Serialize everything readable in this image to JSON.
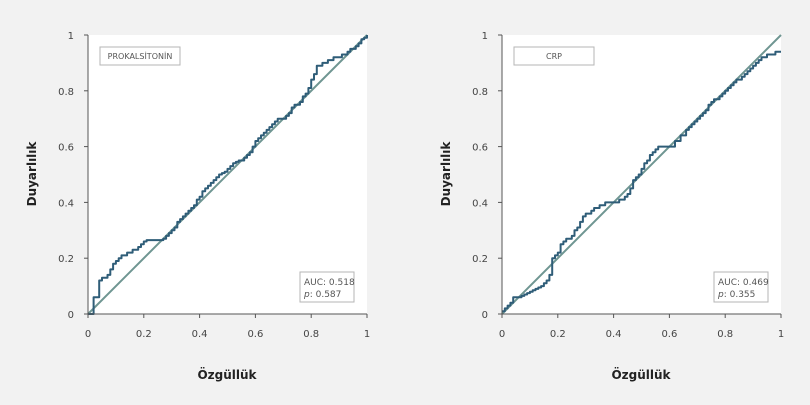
{
  "colors": {
    "background": "#f2f2f2",
    "plot_background": "#ffffff",
    "roc_line": "#2f5d78",
    "reference_line": "#6f9692",
    "axis": "#555555"
  },
  "chart_data": [
    {
      "type": "line",
      "panel": "left",
      "title": "PROKALSİTONİN",
      "xlabel": "Özgüllük",
      "ylabel": "Duyarlılık",
      "xlim": [
        0,
        1
      ],
      "ylim": [
        0,
        1
      ],
      "x_ticks": [
        "0",
        "0.2",
        "0.4",
        "0.6",
        "0.8",
        "1"
      ],
      "y_ticks": [
        "0",
        "0.2",
        "0.4",
        "0.6",
        "0.8",
        "1"
      ],
      "grid": false,
      "stats": {
        "auc": "AUC: 0.518",
        "p_label": "p",
        "p_value": ": 0.587"
      },
      "series": [
        {
          "x": [
            0,
            0.02,
            0.04,
            0.05,
            0.06,
            0.07,
            0.08,
            0.09,
            0.1,
            0.11,
            0.12,
            0.14,
            0.16,
            0.18,
            0.19,
            0.2,
            0.21,
            0.26,
            0.27,
            0.28,
            0.29,
            0.3,
            0.31,
            0.32,
            0.33,
            0.34,
            0.35,
            0.36,
            0.37,
            0.38,
            0.39,
            0.4,
            0.41,
            0.42,
            0.43,
            0.44,
            0.45,
            0.46,
            0.47,
            0.48,
            0.49,
            0.5,
            0.51,
            0.52,
            0.53,
            0.54,
            0.55,
            0.56,
            0.57,
            0.58,
            0.59,
            0.6,
            0.61,
            0.62,
            0.63,
            0.64,
            0.65,
            0.66,
            0.67,
            0.68,
            0.69,
            0.7,
            0.71,
            0.72,
            0.73,
            0.74,
            0.75,
            0.76,
            0.77,
            0.78,
            0.79,
            0.8,
            0.81,
            0.82,
            0.83,
            0.84,
            0.85,
            0.86,
            0.87,
            0.88,
            0.89,
            0.9,
            0.91,
            0.92,
            0.93,
            0.94,
            0.95,
            0.96,
            0.97,
            0.98,
            0.99,
            1
          ],
          "y": [
            0,
            0.06,
            0.12,
            0.13,
            0.13,
            0.14,
            0.16,
            0.18,
            0.19,
            0.2,
            0.21,
            0.22,
            0.23,
            0.24,
            0.25,
            0.26,
            0.265,
            0.265,
            0.27,
            0.28,
            0.29,
            0.3,
            0.31,
            0.33,
            0.34,
            0.35,
            0.36,
            0.37,
            0.38,
            0.39,
            0.41,
            0.42,
            0.44,
            0.45,
            0.46,
            0.47,
            0.48,
            0.49,
            0.5,
            0.505,
            0.51,
            0.52,
            0.53,
            0.54,
            0.545,
            0.55,
            0.55,
            0.56,
            0.57,
            0.58,
            0.6,
            0.62,
            0.63,
            0.64,
            0.65,
            0.66,
            0.67,
            0.68,
            0.69,
            0.7,
            0.7,
            0.7,
            0.71,
            0.72,
            0.74,
            0.75,
            0.75,
            0.76,
            0.78,
            0.79,
            0.81,
            0.84,
            0.86,
            0.89,
            0.89,
            0.9,
            0.9,
            0.91,
            0.91,
            0.92,
            0.92,
            0.92,
            0.93,
            0.93,
            0.94,
            0.95,
            0.95,
            0.96,
            0.97,
            0.985,
            0.99,
            1
          ]
        }
      ]
    },
    {
      "type": "line",
      "panel": "right",
      "title": "CRP",
      "xlabel": "Özgüllük",
      "ylabel": "Duyarlılık",
      "xlim": [
        0,
        1
      ],
      "ylim": [
        0,
        1
      ],
      "x_ticks": [
        "0",
        "0.2",
        "0.4",
        "0.6",
        "0.8",
        "1"
      ],
      "y_ticks": [
        "0",
        "0.2",
        "0.4",
        "0.6",
        "0.8",
        "1"
      ],
      "grid": false,
      "stats": {
        "auc": "AUC: 0.469",
        "p_label": "p",
        "p_value": ": 0.355"
      },
      "series": [
        {
          "x": [
            0,
            0.01,
            0.02,
            0.03,
            0.04,
            0.05,
            0.06,
            0.07,
            0.08,
            0.09,
            0.1,
            0.11,
            0.12,
            0.13,
            0.14,
            0.15,
            0.16,
            0.17,
            0.18,
            0.19,
            0.2,
            0.21,
            0.22,
            0.23,
            0.24,
            0.25,
            0.26,
            0.27,
            0.28,
            0.29,
            0.3,
            0.31,
            0.32,
            0.33,
            0.34,
            0.35,
            0.36,
            0.37,
            0.38,
            0.39,
            0.4,
            0.41,
            0.42,
            0.43,
            0.44,
            0.45,
            0.46,
            0.47,
            0.48,
            0.49,
            0.5,
            0.51,
            0.52,
            0.53,
            0.54,
            0.55,
            0.56,
            0.57,
            0.58,
            0.59,
            0.6,
            0.62,
            0.64,
            0.66,
            0.67,
            0.68,
            0.69,
            0.7,
            0.71,
            0.72,
            0.73,
            0.74,
            0.75,
            0.76,
            0.77,
            0.78,
            0.79,
            0.8,
            0.81,
            0.82,
            0.83,
            0.84,
            0.85,
            0.86,
            0.87,
            0.88,
            0.89,
            0.9,
            0.91,
            0.92,
            0.93,
            0.94,
            0.95,
            0.96,
            0.97,
            0.98,
            0.99,
            1
          ],
          "y": [
            0.01,
            0.02,
            0.03,
            0.04,
            0.06,
            0.06,
            0.06,
            0.065,
            0.07,
            0.075,
            0.08,
            0.085,
            0.09,
            0.095,
            0.1,
            0.11,
            0.12,
            0.14,
            0.2,
            0.21,
            0.22,
            0.25,
            0.26,
            0.27,
            0.27,
            0.28,
            0.3,
            0.31,
            0.33,
            0.35,
            0.36,
            0.36,
            0.37,
            0.38,
            0.38,
            0.39,
            0.39,
            0.4,
            0.4,
            0.4,
            0.4,
            0.4,
            0.41,
            0.41,
            0.42,
            0.43,
            0.45,
            0.48,
            0.49,
            0.5,
            0.52,
            0.54,
            0.55,
            0.57,
            0.58,
            0.59,
            0.6,
            0.6,
            0.6,
            0.6,
            0.6,
            0.62,
            0.64,
            0.66,
            0.67,
            0.68,
            0.69,
            0.7,
            0.71,
            0.72,
            0.73,
            0.75,
            0.76,
            0.77,
            0.77,
            0.78,
            0.79,
            0.8,
            0.81,
            0.82,
            0.83,
            0.84,
            0.84,
            0.85,
            0.86,
            0.87,
            0.88,
            0.89,
            0.9,
            0.91,
            0.92,
            0.92,
            0.93,
            0.93,
            0.93,
            0.94,
            0.94,
            0.94
          ]
        }
      ]
    }
  ]
}
